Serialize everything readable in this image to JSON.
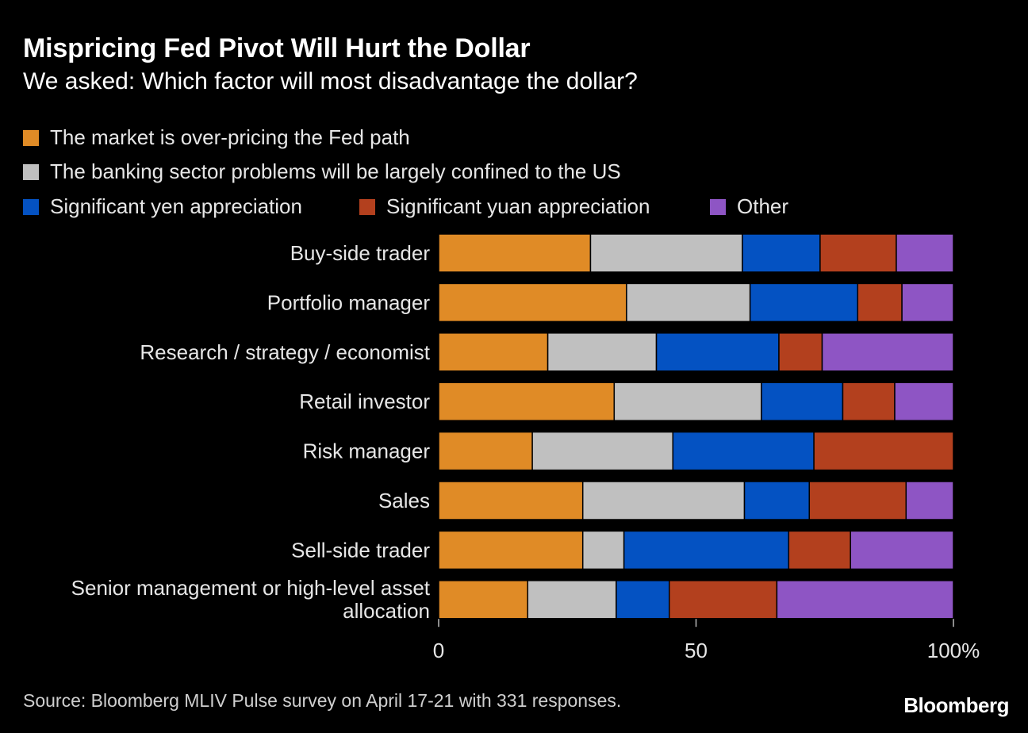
{
  "header": {
    "title": "Mispricing Fed Pivot Will Hurt the Dollar",
    "subtitle": "We asked: Which factor will most disadvantage the dollar?"
  },
  "footer": {
    "source": "Source: Bloomberg MLIV Pulse survey on April 17-21 with 331 responses.",
    "logo": "Bloomberg"
  },
  "colors": {
    "background": "#000000",
    "series": [
      "#E08B26",
      "#C0C0C0",
      "#0452C2",
      "#B3401E",
      "#8E55C4"
    ]
  },
  "chart_data": {
    "type": "bar",
    "orientation": "horizontal",
    "stacked": true,
    "categories": [
      "Buy-side trader",
      "Portfolio manager",
      "Research / strategy / economist",
      "Retail investor",
      "Risk manager",
      "Sales",
      "Sell-side trader",
      "Senior management or high-level asset allocation"
    ],
    "series": [
      {
        "name": "The market is over-pricing the Fed path",
        "color": "#E08B26",
        "values": [
          29.5,
          36.5,
          21.2,
          34.1,
          18.2,
          28.0,
          28.0,
          17.3
        ]
      },
      {
        "name": "The banking sector problems will be largely confined to the US",
        "color": "#C0C0C0",
        "values": [
          29.5,
          24.0,
          21.1,
          28.6,
          27.3,
          31.4,
          8.0,
          17.2
        ]
      },
      {
        "name": "Significant yen appreciation",
        "color": "#0452C2",
        "values": [
          15.1,
          20.9,
          23.8,
          15.8,
          27.4,
          12.6,
          32.0,
          10.3
        ]
      },
      {
        "name": "Significant yuan appreciation",
        "color": "#B3401E",
        "values": [
          14.8,
          8.6,
          8.4,
          10.1,
          27.1,
          18.8,
          12.0,
          20.9
        ]
      },
      {
        "name": "Other",
        "color": "#8E55C4",
        "values": [
          11.1,
          10.0,
          25.5,
          11.4,
          0.0,
          9.2,
          20.0,
          34.3
        ]
      }
    ],
    "xlim": [
      0,
      100
    ],
    "xticks": [
      0,
      50,
      100
    ],
    "xtick_labels": [
      "0",
      "50",
      "100%"
    ],
    "legend_position": "top",
    "grid": false
  }
}
